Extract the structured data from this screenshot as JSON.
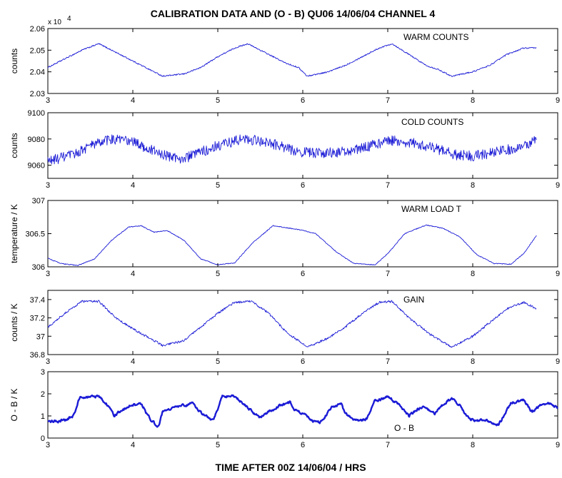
{
  "chart_data": {
    "title": "CALIBRATION DATA AND (O - B) QU06 14/06/04 CHANNEL 4",
    "xlabel": "TIME AFTER 00Z 14/06/04   / HRS",
    "line_color": "#1a1ad6",
    "x_ticks": [
      "3",
      "4",
      "5",
      "6",
      "7",
      "8",
      "9"
    ],
    "panels": [
      {
        "type": "line",
        "annotation": "WARM COUNTS",
        "ylabel": "counts",
        "exponent_label": "x 10",
        "exponent_power": "4",
        "xlim": [
          3,
          9
        ],
        "ylim": [
          2.03,
          2.06
        ],
        "y_ticks": [
          "2.03",
          "2.04",
          "2.05",
          "2.06"
        ],
        "noise": 0.0003,
        "stroke": "thin",
        "series": [
          {
            "points": [
              [
                3.0,
                2.042
              ],
              [
                3.2,
                2.046
              ],
              [
                3.4,
                2.05
              ],
              [
                3.6,
                2.053
              ],
              [
                3.8,
                2.049
              ],
              [
                4.0,
                2.045
              ],
              [
                4.2,
                2.041
              ],
              [
                4.35,
                2.038
              ],
              [
                4.6,
                2.039
              ],
              [
                4.8,
                2.042
              ],
              [
                5.0,
                2.047
              ],
              [
                5.2,
                2.051
              ],
              [
                5.35,
                2.053
              ],
              [
                5.6,
                2.048
              ],
              [
                5.8,
                2.044
              ],
              [
                5.95,
                2.042
              ],
              [
                6.05,
                2.038
              ],
              [
                6.3,
                2.04
              ],
              [
                6.5,
                2.043
              ],
              [
                6.7,
                2.047
              ],
              [
                6.9,
                2.051
              ],
              [
                7.05,
                2.053
              ],
              [
                7.25,
                2.048
              ],
              [
                7.45,
                2.043
              ],
              [
                7.6,
                2.041
              ],
              [
                7.75,
                2.038
              ],
              [
                8.0,
                2.04
              ],
              [
                8.2,
                2.043
              ],
              [
                8.4,
                2.048
              ],
              [
                8.6,
                2.051
              ],
              [
                8.75,
                2.051
              ]
            ]
          }
        ]
      },
      {
        "type": "line",
        "annotation": "COLD COUNTS",
        "ylabel": "counts",
        "xlim": [
          3,
          9
        ],
        "ylim": [
          9050,
          9100
        ],
        "y_ticks": [
          "9060",
          "9080",
          "9100"
        ],
        "noise": 4,
        "stroke": "thin",
        "series": [
          {
            "points": [
              [
                3.0,
                9063
              ],
              [
                3.3,
                9068
              ],
              [
                3.5,
                9075
              ],
              [
                3.75,
                9080
              ],
              [
                4.0,
                9078
              ],
              [
                4.2,
                9072
              ],
              [
                4.4,
                9067
              ],
              [
                4.6,
                9065
              ],
              [
                4.8,
                9070
              ],
              [
                5.0,
                9075
              ],
              [
                5.3,
                9080
              ],
              [
                5.55,
                9078
              ],
              [
                5.8,
                9073
              ],
              [
                6.0,
                9070
              ],
              [
                6.2,
                9069
              ],
              [
                6.4,
                9070
              ],
              [
                6.6,
                9071
              ],
              [
                6.8,
                9075
              ],
              [
                7.05,
                9079
              ],
              [
                7.3,
                9077
              ],
              [
                7.55,
                9073
              ],
              [
                7.8,
                9068
              ],
              [
                8.0,
                9067
              ],
              [
                8.2,
                9069
              ],
              [
                8.5,
                9073
              ],
              [
                8.75,
                9079
              ]
            ]
          }
        ]
      },
      {
        "type": "line",
        "annotation": "WARM LOAD T",
        "ylabel": "temperature / K",
        "xlim": [
          3,
          9
        ],
        "ylim": [
          306,
          307
        ],
        "y_ticks": [
          "306",
          "306.5",
          "307"
        ],
        "noise": 0.006,
        "stroke": "thin",
        "series": [
          {
            "points": [
              [
                3.0,
                306.13
              ],
              [
                3.15,
                306.05
              ],
              [
                3.35,
                306.02
              ],
              [
                3.55,
                306.12
              ],
              [
                3.75,
                306.4
              ],
              [
                3.95,
                306.6
              ],
              [
                4.1,
                306.62
              ],
              [
                4.25,
                306.52
              ],
              [
                4.4,
                306.55
              ],
              [
                4.6,
                306.4
              ],
              [
                4.8,
                306.12
              ],
              [
                5.0,
                306.03
              ],
              [
                5.2,
                306.06
              ],
              [
                5.4,
                306.35
              ],
              [
                5.65,
                306.62
              ],
              [
                5.85,
                306.58
              ],
              [
                6.0,
                306.55
              ],
              [
                6.15,
                306.5
              ],
              [
                6.4,
                306.22
              ],
              [
                6.6,
                306.05
              ],
              [
                6.85,
                306.03
              ],
              [
                7.0,
                306.2
              ],
              [
                7.2,
                306.5
              ],
              [
                7.45,
                306.63
              ],
              [
                7.65,
                306.58
              ],
              [
                7.85,
                306.45
              ],
              [
                8.05,
                306.18
              ],
              [
                8.25,
                306.05
              ],
              [
                8.45,
                306.04
              ],
              [
                8.6,
                306.2
              ],
              [
                8.75,
                306.47
              ]
            ]
          }
        ]
      },
      {
        "type": "line",
        "annotation": "GAIN",
        "ylabel": "counts / K",
        "xlim": [
          3,
          9
        ],
        "ylim": [
          36.8,
          37.5
        ],
        "y_ticks": [
          "36.8",
          "37",
          "37.2",
          "37.4"
        ],
        "noise": 0.012,
        "stroke": "thin",
        "series": [
          {
            "points": [
              [
                3.0,
                37.1
              ],
              [
                3.2,
                37.25
              ],
              [
                3.4,
                37.38
              ],
              [
                3.6,
                37.38
              ],
              [
                3.8,
                37.2
              ],
              [
                4.0,
                37.08
              ],
              [
                4.2,
                36.98
              ],
              [
                4.35,
                36.9
              ],
              [
                4.6,
                36.95
              ],
              [
                4.8,
                37.1
              ],
              [
                5.0,
                37.25
              ],
              [
                5.2,
                37.37
              ],
              [
                5.4,
                37.38
              ],
              [
                5.6,
                37.25
              ],
              [
                5.8,
                37.05
              ],
              [
                5.95,
                36.95
              ],
              [
                6.05,
                36.88
              ],
              [
                6.3,
                36.98
              ],
              [
                6.5,
                37.1
              ],
              [
                6.7,
                37.25
              ],
              [
                6.9,
                37.37
              ],
              [
                7.05,
                37.38
              ],
              [
                7.25,
                37.2
              ],
              [
                7.5,
                37.02
              ],
              [
                7.75,
                36.88
              ],
              [
                8.0,
                37.0
              ],
              [
                8.2,
                37.15
              ],
              [
                8.4,
                37.3
              ],
              [
                8.6,
                37.37
              ],
              [
                8.75,
                37.3
              ]
            ]
          }
        ]
      },
      {
        "type": "line",
        "annotation": "O - B",
        "ylabel": "O - B / K",
        "xlim": [
          3,
          9
        ],
        "ylim": [
          0,
          3
        ],
        "y_ticks": [
          "0",
          "1",
          "2",
          "3"
        ],
        "noise": 0.07,
        "stroke": "thick",
        "series": [
          {
            "points": [
              [
                3.0,
                0.75
              ],
              [
                3.2,
                0.8
              ],
              [
                3.3,
                1.0
              ],
              [
                3.38,
                1.85
              ],
              [
                3.6,
                1.9
              ],
              [
                3.7,
                1.5
              ],
              [
                3.78,
                1.0
              ],
              [
                3.85,
                1.2
              ],
              [
                3.95,
                1.45
              ],
              [
                4.1,
                1.55
              ],
              [
                4.15,
                1.2
              ],
              [
                4.22,
                0.8
              ],
              [
                4.3,
                0.5
              ],
              [
                4.35,
                1.2
              ],
              [
                4.5,
                1.4
              ],
              [
                4.7,
                1.55
              ],
              [
                4.85,
                1.0
              ],
              [
                4.95,
                0.8
              ],
              [
                5.05,
                1.9
              ],
              [
                5.2,
                1.85
              ],
              [
                5.35,
                1.4
              ],
              [
                5.5,
                0.9
              ],
              [
                5.6,
                1.2
              ],
              [
                5.75,
                1.5
              ],
              [
                5.85,
                1.6
              ],
              [
                5.9,
                1.3
              ],
              [
                6.0,
                1.1
              ],
              [
                6.1,
                0.8
              ],
              [
                6.2,
                0.7
              ],
              [
                6.35,
                1.4
              ],
              [
                6.45,
                1.55
              ],
              [
                6.5,
                1.1
              ],
              [
                6.6,
                0.8
              ],
              [
                6.75,
                0.85
              ],
              [
                6.85,
                1.7
              ],
              [
                7.0,
                1.85
              ],
              [
                7.15,
                1.5
              ],
              [
                7.25,
                1.0
              ],
              [
                7.35,
                1.3
              ],
              [
                7.45,
                1.4
              ],
              [
                7.55,
                1.1
              ],
              [
                7.65,
                1.5
              ],
              [
                7.75,
                1.8
              ],
              [
                7.85,
                1.5
              ],
              [
                7.95,
                0.9
              ],
              [
                8.05,
                0.8
              ],
              [
                8.2,
                0.75
              ],
              [
                8.3,
                0.55
              ],
              [
                8.45,
                1.6
              ],
              [
                8.6,
                1.7
              ],
              [
                8.7,
                1.2
              ],
              [
                8.8,
                1.5
              ],
              [
                8.9,
                1.55
              ],
              [
                9.0,
                1.4
              ]
            ]
          }
        ]
      }
    ]
  }
}
